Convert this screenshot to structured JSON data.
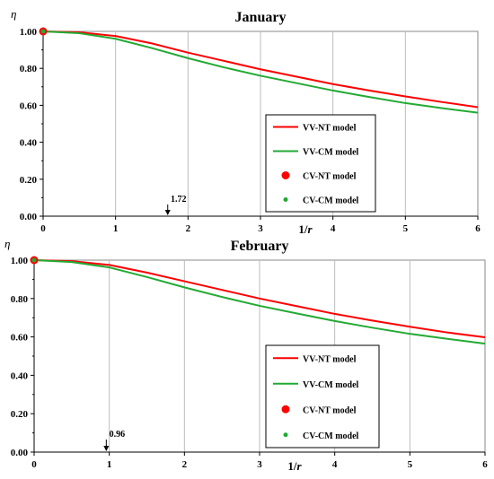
{
  "chart_data": [
    {
      "type": "line",
      "title": "January",
      "ylabel": "η",
      "xlabel": "1/r",
      "xlim": [
        0,
        6
      ],
      "ylim": [
        0,
        1.0
      ],
      "x_ticks": [
        "0",
        "1",
        "2",
        "3",
        "4",
        "5",
        "6"
      ],
      "y_ticks": [
        "0.00",
        "0.20",
        "0.40",
        "0.60",
        "0.80",
        "1.00"
      ],
      "grid": "vertical",
      "legend_position": "lower-right",
      "series": [
        {
          "name": "VV-NT model",
          "color": "#ff0000",
          "style": "line",
          "x": [
            0,
            0.5,
            1,
            1.5,
            2,
            2.5,
            3,
            3.5,
            4,
            4.5,
            5,
            5.5,
            6
          ],
          "y": [
            1.0,
            0.995,
            0.975,
            0.935,
            0.885,
            0.84,
            0.795,
            0.755,
            0.715,
            0.68,
            0.648,
            0.618,
            0.59
          ]
        },
        {
          "name": "VV-CM model",
          "color": "#22aa33",
          "style": "line",
          "x": [
            0,
            0.5,
            1,
            1.5,
            2,
            2.5,
            3,
            3.5,
            4,
            4.5,
            5,
            5.5,
            6
          ],
          "y": [
            1.0,
            0.99,
            0.96,
            0.91,
            0.855,
            0.805,
            0.76,
            0.72,
            0.68,
            0.645,
            0.612,
            0.585,
            0.56
          ]
        },
        {
          "name": "CV-NT model",
          "color": "#ff0000",
          "style": "marker-large",
          "x": [
            0
          ],
          "y": [
            1.0
          ]
        },
        {
          "name": "CV-CM model",
          "color": "#22aa33",
          "style": "marker-small",
          "x": [
            0
          ],
          "y": [
            1.0
          ]
        }
      ],
      "annotation": {
        "text": "1.72",
        "x": 1.72
      }
    },
    {
      "type": "line",
      "title": "February",
      "ylabel": "η",
      "xlabel": "1/r",
      "xlim": [
        0,
        6
      ],
      "ylim": [
        0,
        1.0
      ],
      "x_ticks": [
        "0",
        "1",
        "2",
        "3",
        "4",
        "5",
        "6"
      ],
      "y_ticks": [
        "0.00",
        "0.20",
        "0.40",
        "0.60",
        "0.80",
        "1.00"
      ],
      "grid": "vertical",
      "legend_position": "lower-right",
      "series": [
        {
          "name": "VV-NT model",
          "color": "#ff0000",
          "style": "line",
          "x": [
            0,
            0.5,
            1,
            1.5,
            2,
            2.5,
            3,
            3.5,
            4,
            4.5,
            5,
            5.5,
            6
          ],
          "y": [
            1.0,
            0.995,
            0.975,
            0.935,
            0.89,
            0.845,
            0.8,
            0.76,
            0.72,
            0.685,
            0.653,
            0.623,
            0.598
          ]
        },
        {
          "name": "VV-CM model",
          "color": "#22aa33",
          "style": "line",
          "x": [
            0,
            0.5,
            1,
            1.5,
            2,
            2.5,
            3,
            3.5,
            4,
            4.5,
            5,
            5.5,
            6
          ],
          "y": [
            1.0,
            0.99,
            0.962,
            0.912,
            0.858,
            0.808,
            0.762,
            0.722,
            0.683,
            0.648,
            0.616,
            0.59,
            0.565
          ]
        },
        {
          "name": "CV-NT model",
          "color": "#ff0000",
          "style": "marker-large",
          "x": [
            0
          ],
          "y": [
            1.0
          ]
        },
        {
          "name": "CV-CM model",
          "color": "#22aa33",
          "style": "marker-small",
          "x": [
            0
          ],
          "y": [
            1.0
          ]
        }
      ],
      "annotation": {
        "text": "0.96",
        "x": 0.96
      }
    }
  ]
}
